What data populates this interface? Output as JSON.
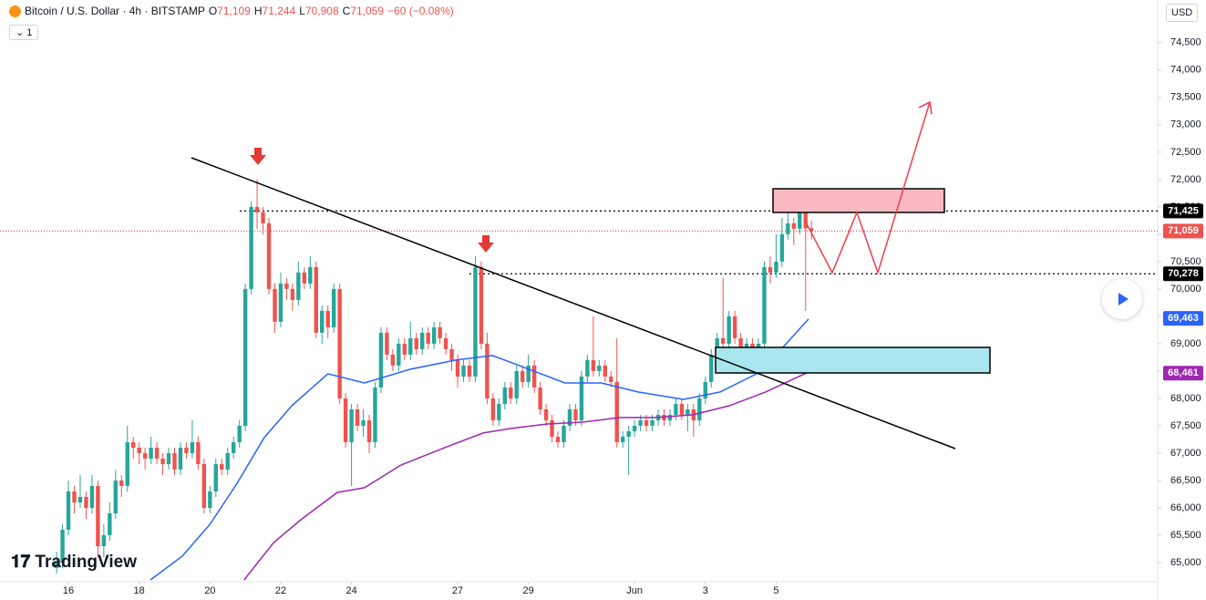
{
  "header": {
    "symbol": "Bitcoin / U.S. Dollar · 4h · BITSTAMP",
    "ohlc": [
      {
        "key": "O",
        "value": "71,109"
      },
      {
        "key": "H",
        "value": "71,244"
      },
      {
        "key": "L",
        "value": "70,908"
      },
      {
        "key": "C",
        "value": "71,059"
      }
    ],
    "change": "−60 (−0.08%)",
    "indicator": "1",
    "currency": "USD",
    "logo": "TradingView"
  },
  "chart_data": {
    "type": "candlestick",
    "up_color": "#26a69a",
    "down_color": "#ef5350",
    "ylim": [
      64650,
      75280
    ],
    "xlim": [
      -9.6,
      186.7
    ],
    "grid": false,
    "yticks": [
      {
        "value": 65000,
        "label": "65,000"
      },
      {
        "value": 65500,
        "label": "65,500"
      },
      {
        "value": 66000,
        "label": "66,000"
      },
      {
        "value": 66500,
        "label": "66,500"
      },
      {
        "value": 67000,
        "label": "67,000"
      },
      {
        "value": 67500,
        "label": "67,500"
      },
      {
        "value": 68000,
        "label": "68,000"
      },
      {
        "value": 68500,
        "label": "68,500"
      },
      {
        "value": 69000,
        "label": "69,000"
      },
      {
        "value": 69500,
        "label": "69,500"
      },
      {
        "value": 70000,
        "label": "70,000"
      },
      {
        "value": 70500,
        "label": "70,500"
      },
      {
        "value": 71000,
        "label": "71,000"
      },
      {
        "value": 71500,
        "label": "71,500"
      },
      {
        "value": 72000,
        "label": "72,000"
      },
      {
        "value": 72500,
        "label": "72,500"
      },
      {
        "value": 73000,
        "label": "73,000"
      },
      {
        "value": 73500,
        "label": "73,500"
      },
      {
        "value": 74000,
        "label": "74,000"
      },
      {
        "value": 74500,
        "label": "74,500"
      }
    ],
    "xticks": [
      {
        "value": 2,
        "label": "16"
      },
      {
        "value": 14,
        "label": "18"
      },
      {
        "value": 26,
        "label": "20"
      },
      {
        "value": 38,
        "label": "22"
      },
      {
        "value": 50,
        "label": "24"
      },
      {
        "value": 68,
        "label": "27"
      },
      {
        "value": 80,
        "label": "29"
      },
      {
        "value": 98,
        "label": "Jun"
      },
      {
        "value": 110,
        "label": "3"
      },
      {
        "value": 122,
        "label": "5"
      }
    ],
    "ohlc": [
      [
        64900,
        65200,
        64800,
        65000
      ],
      [
        65000,
        65700,
        64900,
        65600
      ],
      [
        65600,
        66500,
        65500,
        66300
      ],
      [
        66300,
        66400,
        65900,
        66100
      ],
      [
        66100,
        66600,
        66000,
        66200
      ],
      [
        66200,
        66300,
        65800,
        66000
      ],
      [
        66000,
        66600,
        65900,
        66400
      ],
      [
        66400,
        66500,
        65100,
        65300
      ],
      [
        65300,
        65700,
        65100,
        65500
      ],
      [
        65500,
        66100,
        65400,
        65900
      ],
      [
        65900,
        66700,
        65800,
        66500
      ],
      [
        66500,
        66600,
        66200,
        66400
      ],
      [
        66400,
        67500,
        66300,
        67200
      ],
      [
        67200,
        67300,
        66900,
        67100
      ],
      [
        67100,
        67200,
        66800,
        67000
      ],
      [
        67000,
        67100,
        66700,
        66900
      ],
      [
        66900,
        67300,
        66800,
        67100
      ],
      [
        67100,
        67200,
        66800,
        66900
      ],
      [
        66900,
        67000,
        66600,
        66800
      ],
      [
        66800,
        67100,
        66700,
        67000
      ],
      [
        67000,
        67100,
        66600,
        66700
      ],
      [
        66700,
        67200,
        66600,
        67100
      ],
      [
        67100,
        67200,
        66900,
        67000
      ],
      [
        67000,
        67600,
        66900,
        67200
      ],
      [
        67200,
        67300,
        66700,
        66800
      ],
      [
        66800,
        66900,
        65900,
        66000
      ],
      [
        66000,
        66400,
        65900,
        66300
      ],
      [
        66300,
        66900,
        66200,
        66800
      ],
      [
        66800,
        66900,
        66600,
        66700
      ],
      [
        66700,
        67100,
        66600,
        67000
      ],
      [
        67000,
        67300,
        66900,
        67200
      ],
      [
        67200,
        67600,
        67100,
        67500
      ],
      [
        67500,
        70100,
        67400,
        70000
      ],
      [
        70000,
        71600,
        69900,
        71500
      ],
      [
        71500,
        72000,
        71100,
        71400
      ],
      [
        71400,
        71500,
        71000,
        71200
      ],
      [
        71200,
        71300,
        69900,
        70000
      ],
      [
        70000,
        70100,
        69200,
        69400
      ],
      [
        69400,
        70300,
        69300,
        70100
      ],
      [
        70100,
        70200,
        69800,
        70000
      ],
      [
        70000,
        70100,
        69600,
        69800
      ],
      [
        69800,
        70500,
        69700,
        70300
      ],
      [
        70300,
        70400,
        70000,
        70100
      ],
      [
        70100,
        70600,
        70000,
        70400
      ],
      [
        70400,
        70500,
        69100,
        69200
      ],
      [
        69200,
        69700,
        69000,
        69600
      ],
      [
        69600,
        69700,
        69100,
        69300
      ],
      [
        69300,
        70100,
        69200,
        70000
      ],
      [
        70000,
        70100,
        67900,
        68000
      ],
      [
        68000,
        68100,
        67100,
        67200
      ],
      [
        67200,
        67900,
        66400,
        67800
      ],
      [
        67800,
        67900,
        67400,
        67500
      ],
      [
        67500,
        67800,
        67300,
        67600
      ],
      [
        67600,
        67700,
        67000,
        67200
      ],
      [
        67200,
        68300,
        67100,
        68200
      ],
      [
        68200,
        69300,
        68100,
        69200
      ],
      [
        69200,
        69300,
        68700,
        68800
      ],
      [
        68800,
        68900,
        68500,
        68600
      ],
      [
        68600,
        69100,
        68500,
        69000
      ],
      [
        69000,
        69100,
        68700,
        68800
      ],
      [
        68800,
        69400,
        68700,
        69100
      ],
      [
        69100,
        69200,
        68800,
        68900
      ],
      [
        68900,
        69300,
        68800,
        69200
      ],
      [
        69200,
        69300,
        68900,
        69000
      ],
      [
        69000,
        69400,
        68900,
        69300
      ],
      [
        69300,
        69400,
        69000,
        69100
      ],
      [
        69100,
        69200,
        68800,
        68900
      ],
      [
        68900,
        69000,
        68500,
        68700
      ],
      [
        68700,
        68800,
        68200,
        68400
      ],
      [
        68400,
        68700,
        68300,
        68600
      ],
      [
        68600,
        68700,
        68300,
        68400
      ],
      [
        68400,
        70600,
        68300,
        70400
      ],
      [
        70400,
        70500,
        68900,
        69000
      ],
      [
        69000,
        69200,
        67900,
        68000
      ],
      [
        68000,
        68100,
        67500,
        67600
      ],
      [
        67600,
        68000,
        67500,
        67900
      ],
      [
        67900,
        68300,
        67800,
        68200
      ],
      [
        68200,
        68300,
        67900,
        68000
      ],
      [
        68000,
        68600,
        67900,
        68500
      ],
      [
        68500,
        68600,
        68200,
        68300
      ],
      [
        68300,
        68800,
        68200,
        68600
      ],
      [
        68600,
        68700,
        68100,
        68200
      ],
      [
        68200,
        68300,
        67700,
        67800
      ],
      [
        67800,
        67900,
        67500,
        67600
      ],
      [
        67600,
        67700,
        67200,
        67300
      ],
      [
        67300,
        67400,
        67100,
        67200
      ],
      [
        67200,
        67600,
        67100,
        67500
      ],
      [
        67500,
        67900,
        67400,
        67800
      ],
      [
        67800,
        67900,
        67500,
        67600
      ],
      [
        67600,
        68500,
        67500,
        68400
      ],
      [
        68400,
        68800,
        68300,
        68700
      ],
      [
        68700,
        69500,
        68400,
        68500
      ],
      [
        68500,
        68700,
        68400,
        68600
      ],
      [
        68600,
        68700,
        68300,
        68400
      ],
      [
        68400,
        68500,
        68200,
        68300
      ],
      [
        68300,
        69100,
        67100,
        67200
      ],
      [
        67200,
        67400,
        67100,
        67300
      ],
      [
        67300,
        67500,
        66600,
        67400
      ],
      [
        67400,
        67600,
        67300,
        67500
      ],
      [
        67500,
        67700,
        67400,
        67600
      ],
      [
        67600,
        67700,
        67400,
        67500
      ],
      [
        67500,
        67700,
        67400,
        67600
      ],
      [
        67600,
        67800,
        67500,
        67700
      ],
      [
        67700,
        67800,
        67500,
        67600
      ],
      [
        67600,
        67800,
        67500,
        67700
      ],
      [
        67700,
        68000,
        67600,
        67900
      ],
      [
        67900,
        68000,
        67600,
        67700
      ],
      [
        67700,
        67900,
        67400,
        67800
      ],
      [
        67800,
        67900,
        67300,
        67600
      ],
      [
        67600,
        68100,
        67500,
        68000
      ],
      [
        68000,
        68400,
        67900,
        68300
      ],
      [
        68300,
        68900,
        68200,
        68800
      ],
      [
        68800,
        69200,
        68700,
        69100
      ],
      [
        69100,
        70200,
        68900,
        69000
      ],
      [
        69000,
        69600,
        68900,
        69500
      ],
      [
        69500,
        69600,
        69000,
        69100
      ],
      [
        69100,
        69200,
        68800,
        68900
      ],
      [
        68900,
        69100,
        68700,
        69000
      ],
      [
        69000,
        69100,
        68600,
        68800
      ],
      [
        68800,
        69100,
        68700,
        69000
      ],
      [
        69000,
        70500,
        68900,
        70400
      ],
      [
        70400,
        70600,
        70100,
        70300
      ],
      [
        70300,
        71000,
        70200,
        70500
      ],
      [
        70500,
        71300,
        70400,
        71000
      ],
      [
        71000,
        71500,
        70900,
        71200
      ],
      [
        71200,
        71300,
        70800,
        71100
      ],
      [
        71100,
        71800,
        71000,
        71600
      ],
      [
        71600,
        71700,
        69600,
        71109
      ],
      [
        71109,
        71244,
        70908,
        71059
      ]
    ],
    "lines": [
      {
        "color": "#2962ff",
        "x": [
          15.9,
          21.3,
          26,
          30.6,
          35.2,
          39.9,
          46,
          52.2,
          60,
          67.7,
          73.9,
          80.1,
          86.2,
          92.4,
          98.6,
          106.3,
          112.5,
          118.7,
          123.3,
          127.5
        ],
        "values": [
          64683,
          65117,
          65700,
          66450,
          67283,
          67867,
          68450,
          68283,
          68533,
          68700,
          68783,
          68533,
          68283,
          68283,
          68117,
          67983,
          68117,
          68450,
          68950,
          69450
        ]
      },
      {
        "color": "#9c27b0",
        "x": [
          31.8,
          36.8,
          41.4,
          47.6,
          52.2,
          58.4,
          66.2,
          72.3,
          77,
          83.2,
          89.3,
          95.5,
          101.7,
          107.9,
          114.1,
          120.2,
          127.5
        ],
        "values": [
          64683,
          65367,
          65783,
          66283,
          66367,
          66783,
          67117,
          67367,
          67450,
          67533,
          67567,
          67650,
          67650,
          67700,
          67867,
          68117,
          68483
        ]
      }
    ],
    "price_labels": [
      {
        "value": 71425,
        "label": "71,425",
        "color": "#000000"
      },
      {
        "value": 71059,
        "label": "71,059",
        "color": "#ef5350"
      },
      {
        "value": 70278,
        "label": "70,278",
        "color": "#000000"
      },
      {
        "value": 69463,
        "label": "69,463",
        "color": "#2962ff"
      },
      {
        "value": 68461,
        "label": "68,461",
        "color": "#9c27b0"
      }
    ]
  }
}
